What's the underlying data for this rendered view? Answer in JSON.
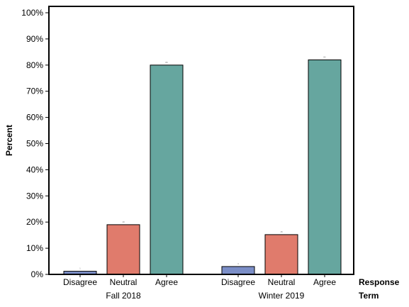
{
  "chart_data": {
    "type": "bar",
    "ylabel": "Percent",
    "ylim": [
      0,
      100
    ],
    "yticks": [
      "0%",
      "10%",
      "20%",
      "30%",
      "40%",
      "50%",
      "60%",
      "70%",
      "80%",
      "90%",
      "100%"
    ],
    "x_axis_titles": {
      "response": "Response",
      "term": "Term"
    },
    "groups": [
      {
        "term": "Fall 2018",
        "bars": [
          {
            "response": "Disagree",
            "value": 1.2,
            "color": "#7b8ec7",
            "data_label": "1"
          },
          {
            "response": "Neutral",
            "value": 19.0,
            "color": "#e07b6c",
            "data_label": "19"
          },
          {
            "response": "Agree",
            "value": 80.0,
            "color": "#66a69f",
            "data_label": "80"
          }
        ]
      },
      {
        "term": "Winter 2019",
        "bars": [
          {
            "response": "Disagree",
            "value": 3.0,
            "color": "#7b8ec7",
            "data_label": "3"
          },
          {
            "response": "Neutral",
            "value": 15.2,
            "color": "#e07b6c",
            "data_label": "15"
          },
          {
            "response": "Agree",
            "value": 82.0,
            "color": "#66a69f",
            "data_label": "82"
          }
        ]
      }
    ],
    "grid": false,
    "legend": "none"
  }
}
